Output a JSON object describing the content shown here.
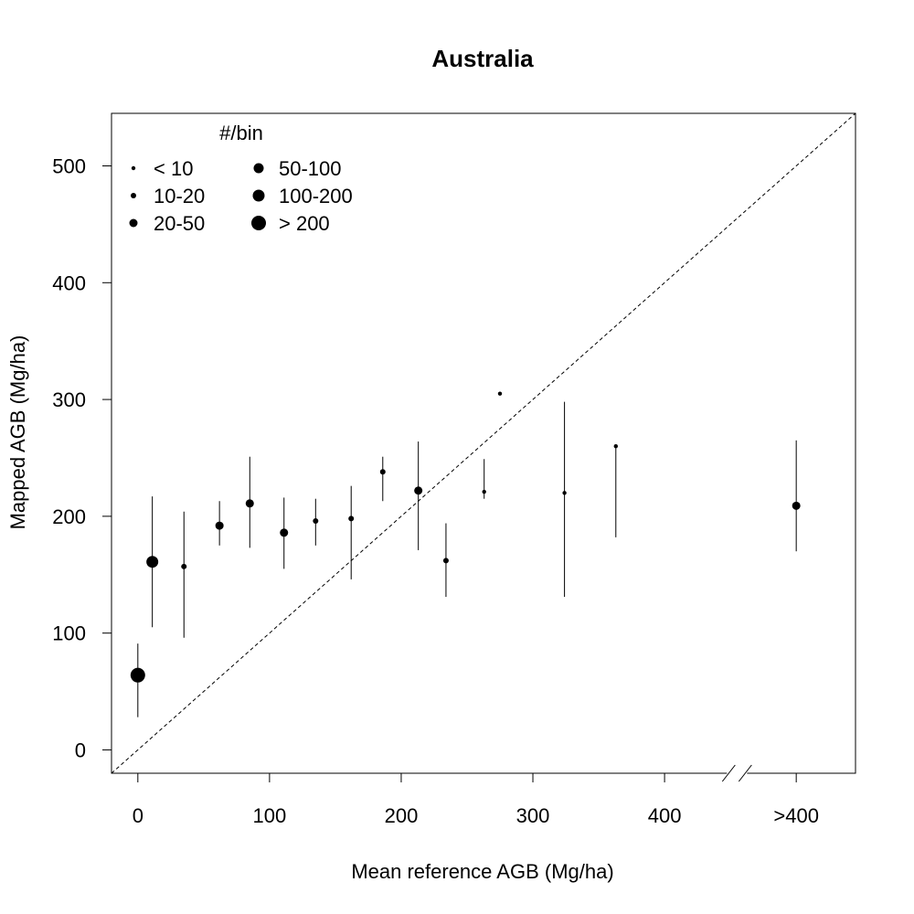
{
  "chart_data": {
    "type": "scatter",
    "title": "Australia",
    "xlabel": "Mean reference AGB (Mg/ha)",
    "ylabel": "Mapped AGB (Mg/ha)",
    "xlim": [
      -20,
      545
    ],
    "ylim": [
      -20,
      545
    ],
    "x_ticks": [
      {
        "value": 0,
        "label": "0"
      },
      {
        "value": 100,
        "label": "100"
      },
      {
        "value": 200,
        "label": "200"
      },
      {
        "value": 300,
        "label": "300"
      },
      {
        "value": 400,
        "label": "400"
      },
      {
        "value": 500,
        "label": ">400"
      }
    ],
    "y_ticks": [
      {
        "value": 0,
        "label": "0"
      },
      {
        "value": 100,
        "label": "100"
      },
      {
        "value": 200,
        "label": "200"
      },
      {
        "value": 300,
        "label": "300"
      },
      {
        "value": 400,
        "label": "400"
      },
      {
        "value": 500,
        "label": "500"
      }
    ],
    "axis_break_at": 455,
    "reference_line": "1:1 dashed",
    "grid": false,
    "legend": {
      "title": "#/bin",
      "placement": "top-left",
      "entries": [
        {
          "label": "< 10",
          "size_class": 0
        },
        {
          "label": "10-20",
          "size_class": 1
        },
        {
          "label": "20-50",
          "size_class": 2
        },
        {
          "label": "50-100",
          "size_class": 3
        },
        {
          "label": "100-200",
          "size_class": 4
        },
        {
          "label": "> 200",
          "size_class": 5
        }
      ]
    },
    "points": [
      {
        "x": 0,
        "y": 64,
        "low": 28,
        "high": 91,
        "size_class": 5
      },
      {
        "x": 11,
        "y": 161,
        "low": 105,
        "high": 217,
        "size_class": 4
      },
      {
        "x": 35,
        "y": 157,
        "low": 96,
        "high": 204,
        "size_class": 1
      },
      {
        "x": 62,
        "y": 192,
        "low": 175,
        "high": 213,
        "size_class": 2
      },
      {
        "x": 85,
        "y": 211,
        "low": 173,
        "high": 251,
        "size_class": 2
      },
      {
        "x": 111,
        "y": 186,
        "low": 155,
        "high": 216,
        "size_class": 2
      },
      {
        "x": 135,
        "y": 196,
        "low": 175,
        "high": 215,
        "size_class": 1
      },
      {
        "x": 162,
        "y": 198,
        "low": 146,
        "high": 226,
        "size_class": 1
      },
      {
        "x": 186,
        "y": 238,
        "low": 213,
        "high": 251,
        "size_class": 1
      },
      {
        "x": 213,
        "y": 222,
        "low": 171,
        "high": 264,
        "size_class": 2
      },
      {
        "x": 234,
        "y": 162,
        "low": 131,
        "high": 194,
        "size_class": 1
      },
      {
        "x": 263,
        "y": 221,
        "low": 215,
        "high": 249,
        "size_class": 0
      },
      {
        "x": 275,
        "y": 305,
        "low": 305,
        "high": 305,
        "size_class": 0
      },
      {
        "x": 324,
        "y": 220,
        "low": 131,
        "high": 298,
        "size_class": 0
      },
      {
        "x": 363,
        "y": 260,
        "low": 182,
        "high": 260,
        "size_class": 0
      },
      {
        "x": 500,
        "y": 209,
        "low": 170,
        "high": 265,
        "size_class": 2
      }
    ]
  }
}
